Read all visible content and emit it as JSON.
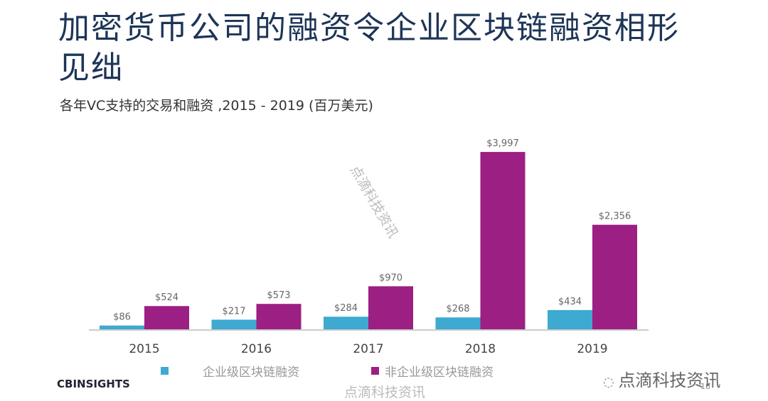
{
  "chart_data": {
    "type": "bar",
    "title": "加密货币公司的融资令企业区块链融资相形见绌",
    "subtitle": "各年VC支持的交易和融资 ,2015 -  2019 (百万美元)",
    "categories": [
      "2015",
      "2016",
      "2017",
      "2018",
      "2019"
    ],
    "series": [
      {
        "name": "企业级区块链融资",
        "color": "#3ea9d1",
        "values": [
          86,
          217,
          284,
          268,
          434
        ],
        "labels": [
          "$86",
          "$217",
          "$284",
          "$268",
          "$434"
        ]
      },
      {
        "name": "非企业级区块链融资",
        "color": "#9c1f84",
        "values": [
          524,
          573,
          970,
          3997,
          2356
        ],
        "labels": [
          "$524",
          "$573",
          "$970",
          "$3,997",
          "$2,356"
        ]
      }
    ],
    "ylim": [
      0,
      4000
    ],
    "grid": false,
    "legend": "bottom"
  },
  "footer": {
    "logo": "CBINSIGHTS",
    "watermark": "点滴科技资讯",
    "brand": "点滴科技资讯",
    "page": "18"
  }
}
